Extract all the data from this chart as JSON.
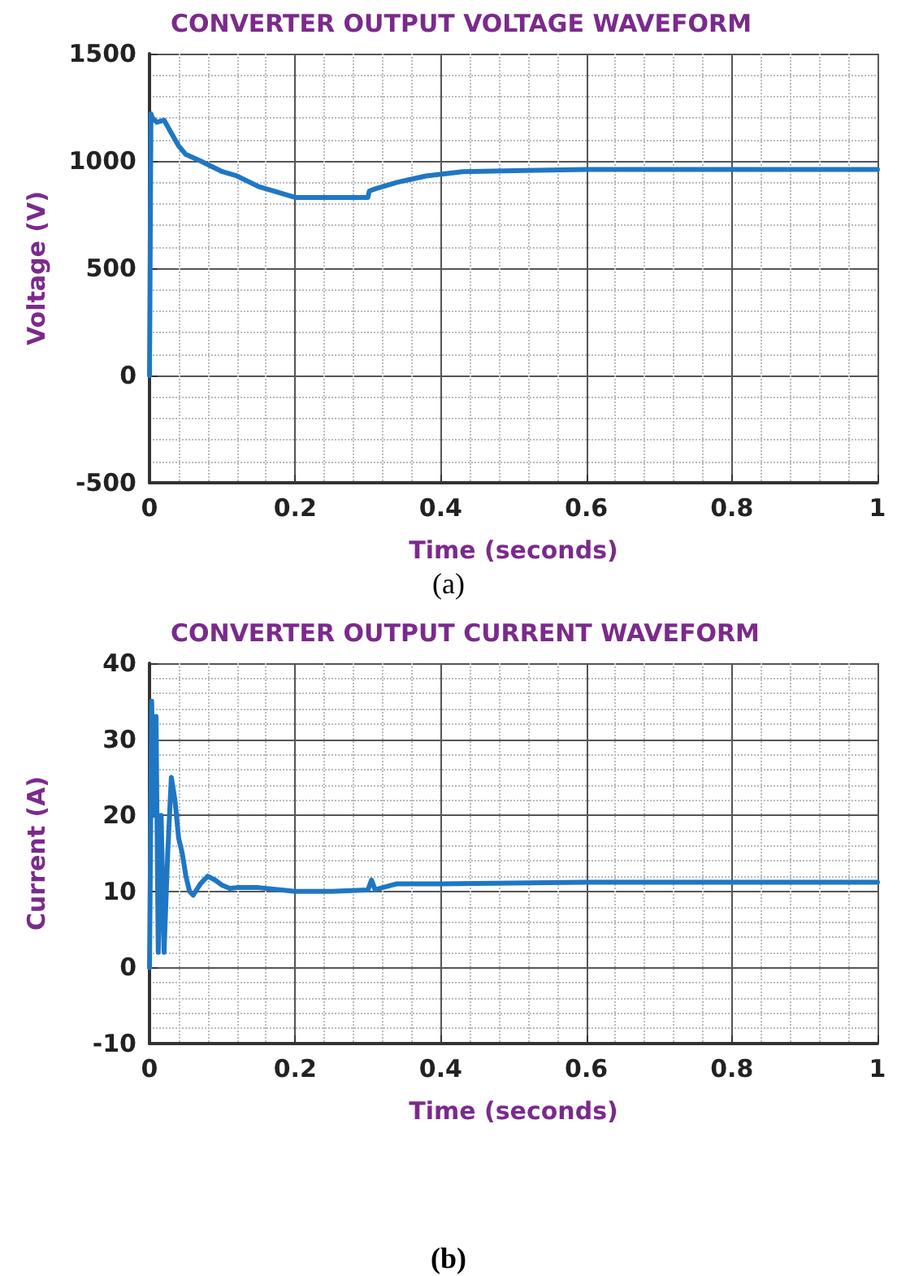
{
  "chart_data": [
    {
      "type": "line",
      "title": "CONVERTER OUTPUT VOLTAGE WAVEFORM",
      "xlabel": "Time (seconds)",
      "ylabel": "Voltage (V)",
      "annotations": [
        "(a)"
      ],
      "xlim": [
        0,
        1
      ],
      "xticks": [
        0,
        0.2,
        0.4,
        0.6,
        0.8,
        1
      ],
      "ylim": [
        -500,
        1500
      ],
      "yticks": [
        -500,
        0,
        500,
        1000,
        1500
      ],
      "grid": true,
      "marker": "none",
      "line_style": "solid",
      "series": [
        {
          "color": "#1f77c4",
          "x": [
            0,
            0.002,
            0.004,
            0.01,
            0.02,
            0.03,
            0.04,
            0.05,
            0.07,
            0.1,
            0.12,
            0.15,
            0.17,
            0.2,
            0.25,
            0.3,
            0.302,
            0.31,
            0.34,
            0.38,
            0.43,
            0.5,
            0.6,
            0.8,
            1
          ],
          "values": [
            0,
            1220,
            1200,
            1180,
            1190,
            1130,
            1070,
            1030,
            1000,
            950,
            930,
            880,
            860,
            830,
            830,
            830,
            860,
            870,
            900,
            930,
            950,
            955,
            960,
            960,
            960
          ]
        }
      ]
    },
    {
      "type": "line",
      "title": "CONVERTER OUTPUT CURRENT WAVEFORM",
      "xlabel": "Time (seconds)",
      "ylabel": "Current (A)",
      "annotations": [
        "(b)"
      ],
      "xlim": [
        0,
        1
      ],
      "xticks": [
        0,
        0.2,
        0.4,
        0.6,
        0.8,
        1
      ],
      "ylim": [
        -10,
        40
      ],
      "yticks": [
        -10,
        0,
        10,
        20,
        30,
        40
      ],
      "grid": true,
      "marker": "none",
      "line_style": "solid",
      "series": [
        {
          "color": "#1f77c4",
          "x": [
            0,
            0.003,
            0.006,
            0.009,
            0.012,
            0.016,
            0.02,
            0.025,
            0.03,
            0.035,
            0.04,
            0.045,
            0.05,
            0.055,
            0.06,
            0.07,
            0.08,
            0.09,
            0.1,
            0.11,
            0.12,
            0.15,
            0.2,
            0.25,
            0.3,
            0.305,
            0.31,
            0.32,
            0.34,
            0.4,
            0.5,
            0.6,
            0.8,
            1
          ],
          "values": [
            0,
            35,
            20,
            33,
            2,
            20,
            2,
            15,
            25,
            22,
            17,
            15,
            12,
            10,
            9.5,
            11,
            12,
            11.5,
            10.8,
            10.4,
            10.5,
            10.5,
            10,
            10,
            10.2,
            11.5,
            10.2,
            10.5,
            11,
            11,
            11.1,
            11.2,
            11.2,
            11.2
          ]
        }
      ]
    }
  ]
}
